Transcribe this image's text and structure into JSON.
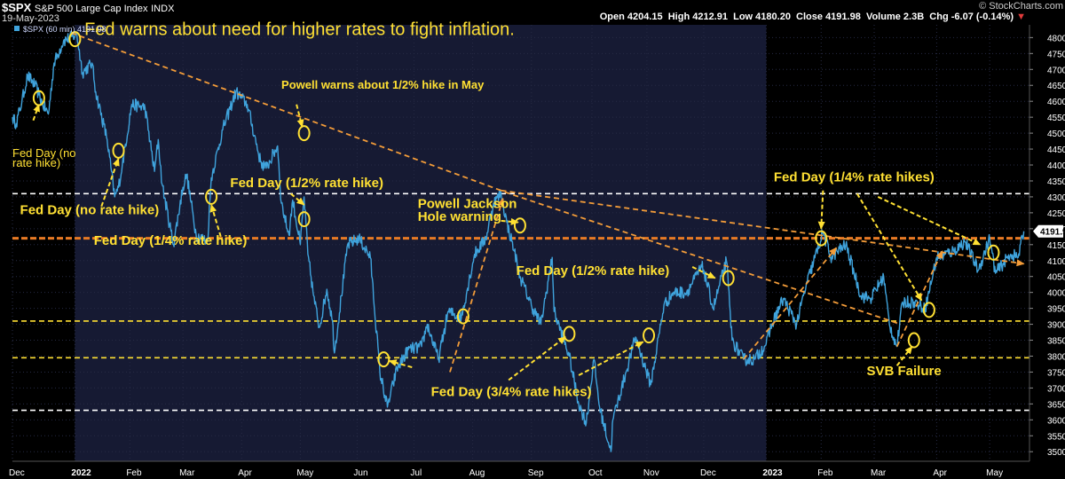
{
  "header": {
    "symbol": "$SPX",
    "name": "S&P 500 Large Cap Index",
    "exchange": "INDX",
    "date": "19-May-2023",
    "open": "4204.15",
    "high": "4212.91",
    "low": "4180.20",
    "close": "4191.98",
    "volume": "2.3B",
    "chg": "-6.07 (-0.14%)",
    "chg_arrow": "▼",
    "credit": "© StockCharts.com",
    "legend": "$SPX (60 min) 4191.98",
    "last_price": "4191.98"
  },
  "colors": {
    "background": "#000000",
    "panel_2022": "#161a33",
    "price_line": "#3fa3dc",
    "annotation": "#ffe033",
    "trendline": "#f39c39",
    "white_level": "#ffffff",
    "orange_level": "#e87a24",
    "axis_text": "#ffffff"
  },
  "chart_data": {
    "type": "line",
    "series": [
      {
        "name": "$SPX (60 min)",
        "points": [
          [
            "2021-12-01",
            4550
          ],
          [
            "2021-12-03",
            4530
          ],
          [
            "2021-12-06",
            4600
          ],
          [
            "2021-12-09",
            4680
          ],
          [
            "2021-12-13",
            4650
          ],
          [
            "2021-12-15",
            4620
          ],
          [
            "2021-12-17",
            4590
          ],
          [
            "2021-12-20",
            4560
          ],
          [
            "2021-12-23",
            4720
          ],
          [
            "2021-12-28",
            4790
          ],
          [
            "2022-01-04",
            4810
          ],
          [
            "2022-01-07",
            4690
          ],
          [
            "2022-01-12",
            4720
          ],
          [
            "2022-01-14",
            4630
          ],
          [
            "2022-01-20",
            4480
          ],
          [
            "2022-01-24",
            4300
          ],
          [
            "2022-01-26",
            4330
          ],
          [
            "2022-01-28",
            4400
          ],
          [
            "2022-02-02",
            4590
          ],
          [
            "2022-02-09",
            4580
          ],
          [
            "2022-02-14",
            4380
          ],
          [
            "2022-02-16",
            4480
          ],
          [
            "2022-02-18",
            4340
          ],
          [
            "2022-02-24",
            4150
          ],
          [
            "2022-03-01",
            4330
          ],
          [
            "2022-03-03",
            4370
          ],
          [
            "2022-03-08",
            4180
          ],
          [
            "2022-03-14",
            4160
          ],
          [
            "2022-03-16",
            4360
          ],
          [
            "2022-03-22",
            4510
          ],
          [
            "2022-03-29",
            4630
          ],
          [
            "2022-04-04",
            4590
          ],
          [
            "2022-04-11",
            4410
          ],
          [
            "2022-04-14",
            4390
          ],
          [
            "2022-04-20",
            4460
          ],
          [
            "2022-04-22",
            4280
          ],
          [
            "2022-04-26",
            4180
          ],
          [
            "2022-04-28",
            4290
          ],
          [
            "2022-05-02",
            4150
          ],
          [
            "2022-05-04",
            4300
          ],
          [
            "2022-05-06",
            4120
          ],
          [
            "2022-05-09",
            3990
          ],
          [
            "2022-05-12",
            3890
          ],
          [
            "2022-05-16",
            4010
          ],
          [
            "2022-05-19",
            3910
          ],
          [
            "2022-05-20",
            3810
          ],
          [
            "2022-05-27",
            4150
          ],
          [
            "2022-06-02",
            4170
          ],
          [
            "2022-06-08",
            4110
          ],
          [
            "2022-06-13",
            3750
          ],
          [
            "2022-06-17",
            3640
          ],
          [
            "2022-06-22",
            3760
          ],
          [
            "2022-06-28",
            3820
          ],
          [
            "2022-07-05",
            3830
          ],
          [
            "2022-07-08",
            3900
          ],
          [
            "2022-07-14",
            3790
          ],
          [
            "2022-07-19",
            3940
          ],
          [
            "2022-07-26",
            3920
          ],
          [
            "2022-08-02",
            4120
          ],
          [
            "2022-08-08",
            4170
          ],
          [
            "2022-08-12",
            4280
          ],
          [
            "2022-08-16",
            4310
          ],
          [
            "2022-08-19",
            4220
          ],
          [
            "2022-08-23",
            4130
          ],
          [
            "2022-08-26",
            4050
          ],
          [
            "2022-09-01",
            3960
          ],
          [
            "2022-09-06",
            3900
          ],
          [
            "2022-09-12",
            4110
          ],
          [
            "2022-09-13",
            3940
          ],
          [
            "2022-09-21",
            3800
          ],
          [
            "2022-09-26",
            3650
          ],
          [
            "2022-09-30",
            3590
          ],
          [
            "2022-10-04",
            3790
          ],
          [
            "2022-10-07",
            3640
          ],
          [
            "2022-10-13",
            3500
          ],
          [
            "2022-10-14",
            3600
          ],
          [
            "2022-10-21",
            3750
          ],
          [
            "2022-10-26",
            3860
          ],
          [
            "2022-11-03",
            3710
          ],
          [
            "2022-11-10",
            3960
          ],
          [
            "2022-11-15",
            4000
          ],
          [
            "2022-11-22",
            4000
          ],
          [
            "2022-11-30",
            4080
          ],
          [
            "2022-12-01",
            4070
          ],
          [
            "2022-12-06",
            3950
          ],
          [
            "2022-12-13",
            4100
          ],
          [
            "2022-12-16",
            3850
          ],
          [
            "2022-12-22",
            3790
          ],
          [
            "2022-12-28",
            3790
          ],
          [
            "2023-01-03",
            3840
          ],
          [
            "2023-01-06",
            3900
          ],
          [
            "2023-01-12",
            3980
          ],
          [
            "2023-01-19",
            3900
          ],
          [
            "2023-01-24",
            4020
          ],
          [
            "2023-02-02",
            4190
          ],
          [
            "2023-02-06",
            4110
          ],
          [
            "2023-02-14",
            4150
          ],
          [
            "2023-02-22",
            3990
          ],
          [
            "2023-02-27",
            3980
          ],
          [
            "2023-03-06",
            4050
          ],
          [
            "2023-03-09",
            3900
          ],
          [
            "2023-03-13",
            3830
          ],
          [
            "2023-03-16",
            3970
          ],
          [
            "2023-03-22",
            3970
          ],
          [
            "2023-03-28",
            3950
          ],
          [
            "2023-04-03",
            4110
          ],
          [
            "2023-04-12",
            4130
          ],
          [
            "2023-04-18",
            4160
          ],
          [
            "2023-04-25",
            4070
          ],
          [
            "2023-05-01",
            4170
          ],
          [
            "2023-05-04",
            4060
          ],
          [
            "2023-05-12",
            4120
          ],
          [
            "2023-05-16",
            4110
          ],
          [
            "2023-05-19",
            4191.98
          ]
        ]
      }
    ],
    "x_range": [
      "2021-12-01",
      "2023-05-22"
    ],
    "y_range": [
      3470,
      4840
    ],
    "y_ticks": [
      3500,
      3550,
      3600,
      3650,
      3700,
      3750,
      3800,
      3850,
      3900,
      3950,
      4000,
      4050,
      4100,
      4150,
      4200,
      4250,
      4300,
      4350,
      4400,
      4450,
      4500,
      4550,
      4600,
      4650,
      4700,
      4750,
      4800
    ],
    "x_ticks": [
      {
        "label": "Dec",
        "date": "2021-12-01",
        "bold": false
      },
      {
        "label": "2022",
        "date": "2022-01-03",
        "bold": true
      },
      {
        "label": "Feb",
        "date": "2022-02-01",
        "bold": false
      },
      {
        "label": "Mar",
        "date": "2022-03-01",
        "bold": false
      },
      {
        "label": "Apr",
        "date": "2022-04-01",
        "bold": false
      },
      {
        "label": "May",
        "date": "2022-05-02",
        "bold": false
      },
      {
        "label": "Jun",
        "date": "2022-06-01",
        "bold": false
      },
      {
        "label": "Jul",
        "date": "2022-07-01",
        "bold": false
      },
      {
        "label": "Aug",
        "date": "2022-08-01",
        "bold": false
      },
      {
        "label": "Sep",
        "date": "2022-09-01",
        "bold": false
      },
      {
        "label": "Oct",
        "date": "2022-10-03",
        "bold": false
      },
      {
        "label": "Nov",
        "date": "2022-11-01",
        "bold": false
      },
      {
        "label": "Dec",
        "date": "2022-12-01",
        "bold": false
      },
      {
        "label": "2023",
        "date": "2023-01-03",
        "bold": true
      },
      {
        "label": "Feb",
        "date": "2023-02-01",
        "bold": false
      },
      {
        "label": "Mar",
        "date": "2023-03-01",
        "bold": false
      },
      {
        "label": "Apr",
        "date": "2023-04-03",
        "bold": false
      },
      {
        "label": "May",
        "date": "2023-05-01",
        "bold": false
      }
    ],
    "shaded_period": [
      "2022-01-03",
      "2023-01-03"
    ],
    "horizontal_levels": [
      {
        "value": 4310,
        "color": "white"
      },
      {
        "value": 4170,
        "color": "orange"
      },
      {
        "value": 3910,
        "color": "yellow"
      },
      {
        "value": 3795,
        "color": "yellow"
      },
      {
        "value": 3630,
        "color": "white"
      }
    ],
    "trendlines": [
      {
        "from": [
          "2022-01-01",
          4815
        ],
        "to": [
          "2022-08-16",
          4320
        ]
      },
      {
        "from": [
          "2022-08-16",
          4320
        ],
        "to": [
          "2023-05-19",
          4090
        ]
      },
      {
        "from": [
          "2022-08-18",
          4315
        ],
        "to": [
          "2023-03-15",
          3900
        ]
      },
      {
        "from": [
          "2022-07-20",
          3750
        ],
        "to": [
          "2022-08-17",
          4295
        ]
      },
      {
        "from": [
          "2022-12-22",
          3790
        ],
        "to": [
          "2023-02-09",
          4140
        ]
      },
      {
        "from": [
          "2023-03-13",
          3830
        ],
        "to": [
          "2023-04-06",
          4130
        ]
      }
    ],
    "annotations": [
      {
        "text": "Fed warns about need for higher rates to fight inflation.",
        "at": [
          "2022-01-08",
          4808
        ],
        "size": "large"
      },
      {
        "text": "Powell warns about 1/2% hike in May",
        "at": [
          "2022-04-22",
          4640
        ],
        "size": "small"
      },
      {
        "text": "Fed Day (no",
        "at": [
          "2021-12-01",
          4425
        ],
        "size": "small"
      },
      {
        "text": "rate hike)",
        "at": [
          "2021-12-01",
          4395
        ],
        "size": "small"
      },
      {
        "text": "Fed Day (no rate hike)",
        "at": [
          "2021-12-05",
          4245
        ],
        "size": "medium"
      },
      {
        "text": "Fed Day (1/4% rate hike)",
        "at": [
          "2022-01-13",
          4150
        ],
        "size": "medium"
      },
      {
        "text": "Fed Day (1/2% rate hike)",
        "at": [
          "2022-03-26",
          4330
        ],
        "size": "medium"
      },
      {
        "text": "Powell Jackson",
        "at": [
          "2022-07-03",
          4265
        ],
        "size": "medium"
      },
      {
        "text": "Hole warning",
        "at": [
          "2022-07-03",
          4225
        ],
        "size": "medium"
      },
      {
        "text": "Fed Day (1/2% rate hike)",
        "at": [
          "2022-08-24",
          4055
        ],
        "size": "medium"
      },
      {
        "text": "Fed Day (3/4% rate hikes)",
        "at": [
          "2022-07-10",
          3675
        ],
        "size": "medium"
      },
      {
        "text": "Fed Day (1/4% rate hikes)",
        "at": [
          "2023-01-07",
          4348
        ],
        "size": "medium"
      },
      {
        "text": "SVB Failure",
        "at": [
          "2023-02-25",
          3740
        ],
        "size": "medium"
      }
    ],
    "highlight_ellipses": [
      [
        "2021-12-15",
        4610
      ],
      [
        "2022-01-03",
        4795
      ],
      [
        "2022-01-26",
        4445
      ],
      [
        "2022-03-16",
        4300
      ],
      [
        "2022-05-04",
        4500
      ],
      [
        "2022-05-04",
        4230
      ],
      [
        "2022-06-15",
        3790
      ],
      [
        "2022-07-27",
        3925
      ],
      [
        "2022-08-26",
        4210
      ],
      [
        "2022-09-21",
        3870
      ],
      [
        "2022-11-02",
        3865
      ],
      [
        "2022-12-14",
        4045
      ],
      [
        "2023-02-01",
        4170
      ],
      [
        "2023-03-22",
        3850
      ],
      [
        "2023-03-30",
        3945
      ],
      [
        "2023-05-03",
        4125
      ]
    ],
    "arrows": [
      {
        "from": [
          "2021-12-12",
          4540
        ],
        "to": [
          "2021-12-15",
          4590
        ]
      },
      {
        "from": [
          "2022-01-17",
          4270
        ],
        "to": [
          "2022-01-26",
          4420
        ]
      },
      {
        "from": [
          "2022-03-21",
          4175
        ],
        "to": [
          "2022-03-16",
          4275
        ]
      },
      {
        "from": [
          "2022-04-30",
          4590
        ],
        "to": [
          "2022-05-03",
          4520
        ]
      },
      {
        "from": [
          "2022-04-27",
          4310
        ],
        "to": [
          "2022-05-04",
          4275
        ]
      },
      {
        "from": [
          "2022-08-16",
          4225
        ],
        "to": [
          "2022-08-25",
          4220
        ]
      },
      {
        "from": [
          "2022-11-25",
          4080
        ],
        "to": [
          "2022-12-07",
          4045
        ]
      },
      {
        "from": [
          "2022-06-30",
          3765
        ],
        "to": [
          "2022-06-18",
          3785
        ]
      },
      {
        "from": [
          "2022-08-20",
          3725
        ],
        "to": [
          "2022-09-19",
          3860
        ]
      },
      {
        "from": [
          "2022-09-26",
          3740
        ],
        "to": [
          "2022-10-30",
          3845
        ]
      },
      {
        "from": [
          "2023-02-02",
          4320
        ],
        "to": [
          "2023-02-01",
          4200
        ]
      },
      {
        "from": [
          "2023-02-20",
          4310
        ],
        "to": [
          "2023-03-26",
          3975
        ]
      },
      {
        "from": [
          "2023-03-03",
          4300
        ],
        "to": [
          "2023-04-26",
          4150
        ]
      },
      {
        "from": [
          "2023-03-13",
          3770
        ],
        "to": [
          "2023-03-21",
          3830
        ]
      }
    ]
  }
}
